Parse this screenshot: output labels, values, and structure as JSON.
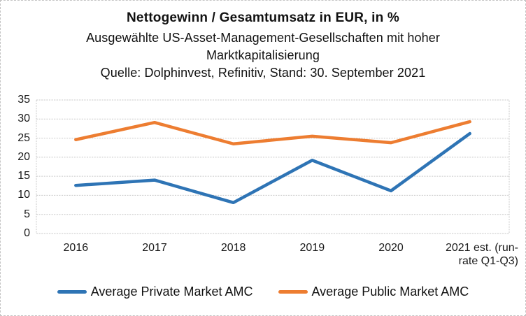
{
  "header": {
    "title": "Nettogewinn / Gesamtumsatz in EUR, in %",
    "subtitle_line1": "Ausgewählte US-Asset-Management-Gesellschaften mit hoher",
    "subtitle_line2": "Marktkapitalisierung",
    "source_line": "Quelle: Dolphinvest, Refinitiv, Stand: 30. September 2021"
  },
  "chart_data": {
    "type": "line",
    "title": "Nettogewinn / Gesamtumsatz in EUR, in %",
    "categories": [
      "2016",
      "2017",
      "2018",
      "2019",
      "2020",
      "2021 est. (run-rate Q1-Q3)"
    ],
    "series": [
      {
        "name": "Average Private Market AMC",
        "color": "#2E74B5",
        "values": [
          12.6,
          14.0,
          8.1,
          19.2,
          11.2,
          26.2
        ]
      },
      {
        "name": "Average Public Market AMC",
        "color": "#ED7D31",
        "values": [
          24.6,
          29.1,
          23.5,
          25.5,
          23.8,
          29.3
        ]
      }
    ],
    "xlabel": "",
    "ylabel": "",
    "ylim": [
      0,
      35
    ],
    "ytick_step": 5,
    "yticks": [
      "0",
      "5",
      "10",
      "15",
      "20",
      "25",
      "30",
      "35"
    ],
    "grid": true,
    "legend_position": "bottom"
  },
  "colors": {
    "gridline": "#c9c9c9",
    "axis_text": "#1a1a1a",
    "series_blue": "#2E74B5",
    "series_orange": "#ED7D31",
    "frame_border": "#c3c3c3"
  }
}
